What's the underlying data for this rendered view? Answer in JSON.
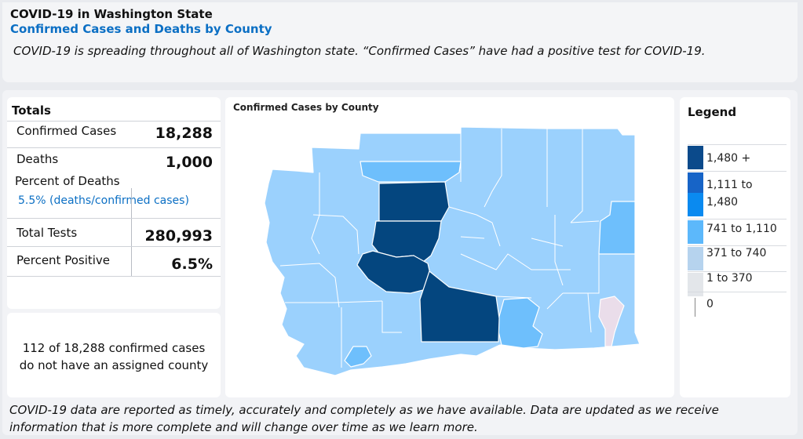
{
  "header": {
    "title": "COVID-19 in Washington State",
    "subtitle": "Confirmed Cases and Deaths by County",
    "intro": "COVID-19 is spreading throughout all of Washington state. “Confirmed Cases” have had a positive test for COVID-19."
  },
  "totals": {
    "title": "Totals",
    "confirmed_label": "Confirmed Cases",
    "confirmed_value": "18,288",
    "deaths_label": "Deaths",
    "deaths_value": "1,000",
    "percent_deaths_label": "Percent of Deaths",
    "percent_deaths_value": "5.5% (deaths/confirmed cases)",
    "tests_label": "Total Tests",
    "tests_value": "280,993",
    "positive_label": "Percent Positive",
    "positive_value": "6.5%"
  },
  "unassigned": {
    "line1": "112 of 18,288 confirmed cases",
    "line2": "do not have an assigned county"
  },
  "map": {
    "title": "Confirmed Cases by County"
  },
  "legend": {
    "title": "Legend",
    "items": [
      {
        "label": "1,480 +",
        "color": "#0b4a8b"
      },
      {
        "label": "1,111 to",
        "color": "#1764c7"
      },
      {
        "label": "1,480",
        "color": "#0a8af0"
      },
      {
        "label": "741 to 1,110",
        "color": "#5cb8fb"
      },
      {
        "label": "371 to 740",
        "color": "#b6d3ee"
      },
      {
        "label": "1 to 370",
        "color": "#e3e6ea"
      },
      {
        "label": "0",
        "color": "#ffffff"
      }
    ]
  },
  "colors": {
    "tier_high": "#04467f",
    "tier_mid": "#6ebffc",
    "tier_low": "#9bd1fd",
    "tier_min": "#eaddea",
    "accent": "#0b6fc4"
  },
  "footer": {
    "text": "COVID-19 data are reported as timely, accurately and completely as we have available. Data are updated as we receive information that is more complete and will change over time as we learn more."
  }
}
